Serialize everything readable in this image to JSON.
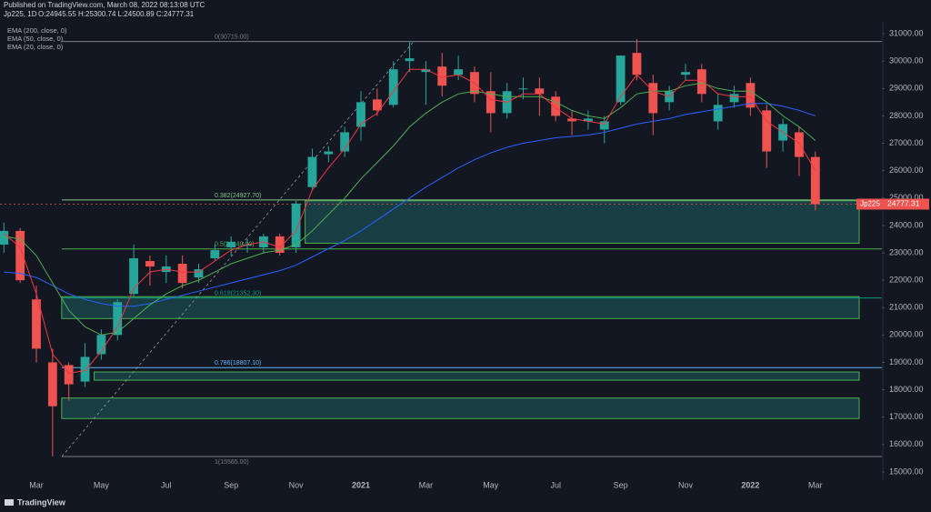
{
  "chart_data": {
    "type": "candlestick",
    "title": "Published on TradingView.com, March 08, 2022 08:13:08 UTC",
    "subtitle": "Jp225, 1D",
    "ohlc_readout": "O:24945.55 H:25300.74 L:24500.89 C:24777.31",
    "symbol": "Jp225",
    "last_price": 24777.31,
    "brand": "TradingView",
    "up_color": "#26a69a",
    "down_color": "#ef5350",
    "categories": [
      null,
      null,
      "Mar",
      null,
      null,
      null,
      "May",
      null,
      null,
      null,
      "Jul",
      null,
      null,
      null,
      "Sep",
      null,
      null,
      null,
      "Nov",
      null,
      null,
      null,
      "2021",
      null,
      null,
      null,
      "Mar",
      null,
      null,
      null,
      "May",
      null,
      null,
      null,
      "Jul",
      null,
      null,
      null,
      "Sep",
      null,
      null,
      null,
      "Nov",
      null,
      null,
      null,
      "2022",
      null,
      null,
      null,
      "Mar"
    ],
    "ohlc": [
      [
        23300,
        24100,
        23000,
        23800
      ],
      [
        23800,
        23900,
        21900,
        22000
      ],
      [
        21300,
        21800,
        19000,
        19500
      ],
      [
        19000,
        19500,
        15570,
        17400
      ],
      [
        18900,
        19000,
        17600,
        18200
      ],
      [
        18300,
        19700,
        18100,
        19200
      ],
      [
        19300,
        20200,
        19100,
        20000
      ],
      [
        20000,
        21300,
        19800,
        21200
      ],
      [
        21500,
        23300,
        21400,
        22800
      ],
      [
        22700,
        22900,
        21800,
        22500
      ],
      [
        22300,
        22900,
        21900,
        22500
      ],
      [
        22600,
        22900,
        21700,
        21900
      ],
      [
        22100,
        22600,
        21900,
        22400
      ],
      [
        22800,
        23300,
        22700,
        23100
      ],
      [
        23200,
        23600,
        22900,
        23400
      ],
      [
        23300,
        23500,
        23000,
        23300
      ],
      [
        23200,
        23700,
        23000,
        23600
      ],
      [
        23600,
        23700,
        22900,
        23000
      ],
      [
        23200,
        24900,
        23000,
        24800
      ],
      [
        25400,
        26800,
        25300,
        26500
      ],
      [
        26600,
        26900,
        26300,
        26700
      ],
      [
        26700,
        27600,
        26500,
        27400
      ],
      [
        27600,
        28900,
        27100,
        28500
      ],
      [
        28600,
        29000,
        28000,
        28200
      ],
      [
        28400,
        30000,
        28300,
        29700
      ],
      [
        30000,
        30700,
        29600,
        30100
      ],
      [
        29600,
        30000,
        28400,
        29700
      ],
      [
        29800,
        30300,
        28700,
        29100
      ],
      [
        29500,
        30200,
        29300,
        29700
      ],
      [
        29600,
        29800,
        28500,
        28800
      ],
      [
        28900,
        29600,
        27400,
        28100
      ],
      [
        28100,
        29200,
        27900,
        28900
      ],
      [
        29000,
        29400,
        28600,
        29000
      ],
      [
        29000,
        29400,
        28000,
        28800
      ],
      [
        28700,
        28900,
        27800,
        28000
      ],
      [
        27900,
        28200,
        27300,
        27800
      ],
      [
        27800,
        28200,
        27500,
        27900
      ],
      [
        27500,
        28000,
        27000,
        27800
      ],
      [
        28500,
        30200,
        28400,
        30200
      ],
      [
        30300,
        30800,
        29300,
        29500
      ],
      [
        29200,
        29500,
        27300,
        28100
      ],
      [
        28500,
        29100,
        28200,
        28900
      ],
      [
        29500,
        29900,
        29300,
        29600
      ],
      [
        29700,
        29900,
        28500,
        28800
      ],
      [
        27800,
        28800,
        27500,
        28400
      ],
      [
        28500,
        29100,
        28300,
        28800
      ],
      [
        29200,
        29400,
        28000,
        28300
      ],
      [
        28200,
        28400,
        26100,
        26700
      ],
      [
        27100,
        27900,
        26700,
        27700
      ],
      [
        27400,
        27600,
        25800,
        26500
      ],
      [
        26500,
        26700,
        24550,
        24777.31
      ]
    ],
    "lines": [
      {
        "name": "EMA (200, close, 0)",
        "color": "#2962ff",
        "values": [
          22300,
          22250,
          22100,
          21800,
          21500,
          21300,
          21150,
          21050,
          21050,
          21150,
          21300,
          21450,
          21600,
          21750,
          21900,
          22050,
          22200,
          22350,
          22550,
          22850,
          23150,
          23450,
          23800,
          24200,
          24600,
          25000,
          25400,
          25750,
          26100,
          26400,
          26650,
          26850,
          27000,
          27100,
          27200,
          27250,
          27300,
          27400,
          27550,
          27700,
          27800,
          27900,
          28050,
          28150,
          28250,
          28350,
          28450,
          28450,
          28350,
          28200,
          28000
        ]
      },
      {
        "name": "EMA (50, close, 0)",
        "color": "#4caf50",
        "values": [
          23600,
          23500,
          22900,
          21900,
          20900,
          20300,
          20000,
          20100,
          20600,
          21100,
          21500,
          21800,
          22000,
          22300,
          22600,
          22800,
          23000,
          23100,
          23300,
          23800,
          24400,
          25000,
          25700,
          26300,
          26900,
          27600,
          28100,
          28500,
          28800,
          28900,
          28800,
          28700,
          28700,
          28700,
          28500,
          28200,
          28000,
          27900,
          28300,
          28800,
          28900,
          28900,
          29100,
          29200,
          29000,
          28900,
          28900,
          28500,
          28000,
          27600,
          27100
        ]
      },
      {
        "name": "EMA (20, close, 0)",
        "color": "#f23645",
        "values": [
          23700,
          23200,
          21500,
          19300,
          18600,
          18700,
          19400,
          20300,
          21700,
          22300,
          22400,
          22300,
          22300,
          22700,
          23100,
          23300,
          23400,
          23200,
          23800,
          25300,
          26100,
          26800,
          27700,
          28100,
          28900,
          29700,
          29700,
          29400,
          29500,
          29200,
          28600,
          28500,
          28800,
          28800,
          28300,
          27900,
          27800,
          27700,
          28700,
          29500,
          28900,
          28700,
          29300,
          29300,
          28800,
          28700,
          28700,
          27800,
          27400,
          27000,
          26000
        ]
      }
    ],
    "fib_levels": [
      {
        "value": 30715,
        "label": "0(30715.00)",
        "color": "#787b86"
      },
      {
        "value": 24927.7,
        "label": "0.382(24927.70)",
        "color": "#81c784"
      },
      {
        "value": 23140,
        "label": "0.5(23140.00)",
        "color": "#4caf50"
      },
      {
        "value": 21352.3,
        "label": "0.618(21352.30)",
        "color": "#089981"
      },
      {
        "value": 18807.1,
        "label": "0.786(18807.10)",
        "color": "#64b5f6"
      },
      {
        "value": 15565,
        "label": "1(15565.00)",
        "color": "#787b86"
      }
    ],
    "zones": [
      {
        "low": 23350,
        "high": 24900,
        "start": 18
      },
      {
        "low": 20600,
        "high": 21400,
        "start": 3
      },
      {
        "low": 18350,
        "high": 18650,
        "start": 5
      },
      {
        "low": 16950,
        "high": 17700,
        "start": 3
      }
    ],
    "ylim": [
      14700,
      31300
    ],
    "yticks": [
      {
        "value": 15000,
        "label": "15000.00"
      },
      {
        "value": 16000,
        "label": "16000.00"
      },
      {
        "value": 17000,
        "label": "17000.00"
      },
      {
        "value": 18000,
        "label": "18000.00"
      },
      {
        "value": 19000,
        "label": "19000.00"
      },
      {
        "value": 20000,
        "label": "20000.00"
      },
      {
        "value": 21000,
        "label": "21000.00"
      },
      {
        "value": 22000,
        "label": "22000.00"
      },
      {
        "value": 23000,
        "label": "23000.00"
      },
      {
        "value": 24000,
        "label": "24000.00"
      },
      {
        "value": 25000,
        "label": "25000.00"
      },
      {
        "value": 26000,
        "label": "26000.00"
      },
      {
        "value": 27000,
        "label": "27000.00"
      },
      {
        "value": 28000,
        "label": "28000.00"
      },
      {
        "value": 29000,
        "label": "29000.00"
      },
      {
        "value": 30000,
        "label": "30000.00"
      },
      {
        "value": 31000,
        "label": "31000.00"
      }
    ]
  }
}
